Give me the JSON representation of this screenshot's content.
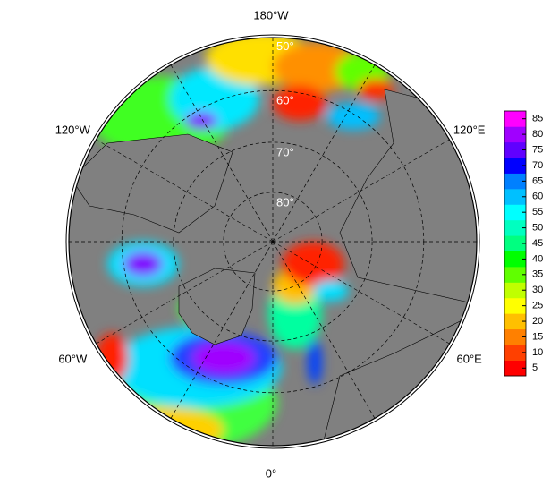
{
  "map": {
    "longitude_labels": [
      {
        "lon": 180,
        "label": "180°W"
      },
      {
        "lon": -120,
        "label": "120°W"
      },
      {
        "lon": 120,
        "label": "120°E"
      },
      {
        "lon": -60,
        "label": "60°W"
      },
      {
        "lon": 60,
        "label": "60°E"
      },
      {
        "lon": 0,
        "label": "0°"
      }
    ],
    "latitude_circles": [
      {
        "value": 50,
        "label": "50°"
      },
      {
        "value": 60,
        "label": "60°"
      },
      {
        "value": 70,
        "label": "70°"
      },
      {
        "value": 80,
        "label": "80°"
      }
    ],
    "colorbar": {
      "lim": [
        2.5,
        87.5
      ],
      "ticks": [
        5,
        10,
        15,
        20,
        25,
        30,
        35,
        40,
        45,
        50,
        55,
        60,
        65,
        70,
        75,
        80,
        85
      ],
      "colors": [
        "#ff0000",
        "#ff4000",
        "#ff8000",
        "#ffc000",
        "#ffff00",
        "#c0ff00",
        "#60ff00",
        "#00ff00",
        "#00ff80",
        "#00ffc0",
        "#00ffff",
        "#00c0ff",
        "#0080ff",
        "#0000ff",
        "#6000ff",
        "#a000ff",
        "#ff00ff"
      ]
    }
  }
}
